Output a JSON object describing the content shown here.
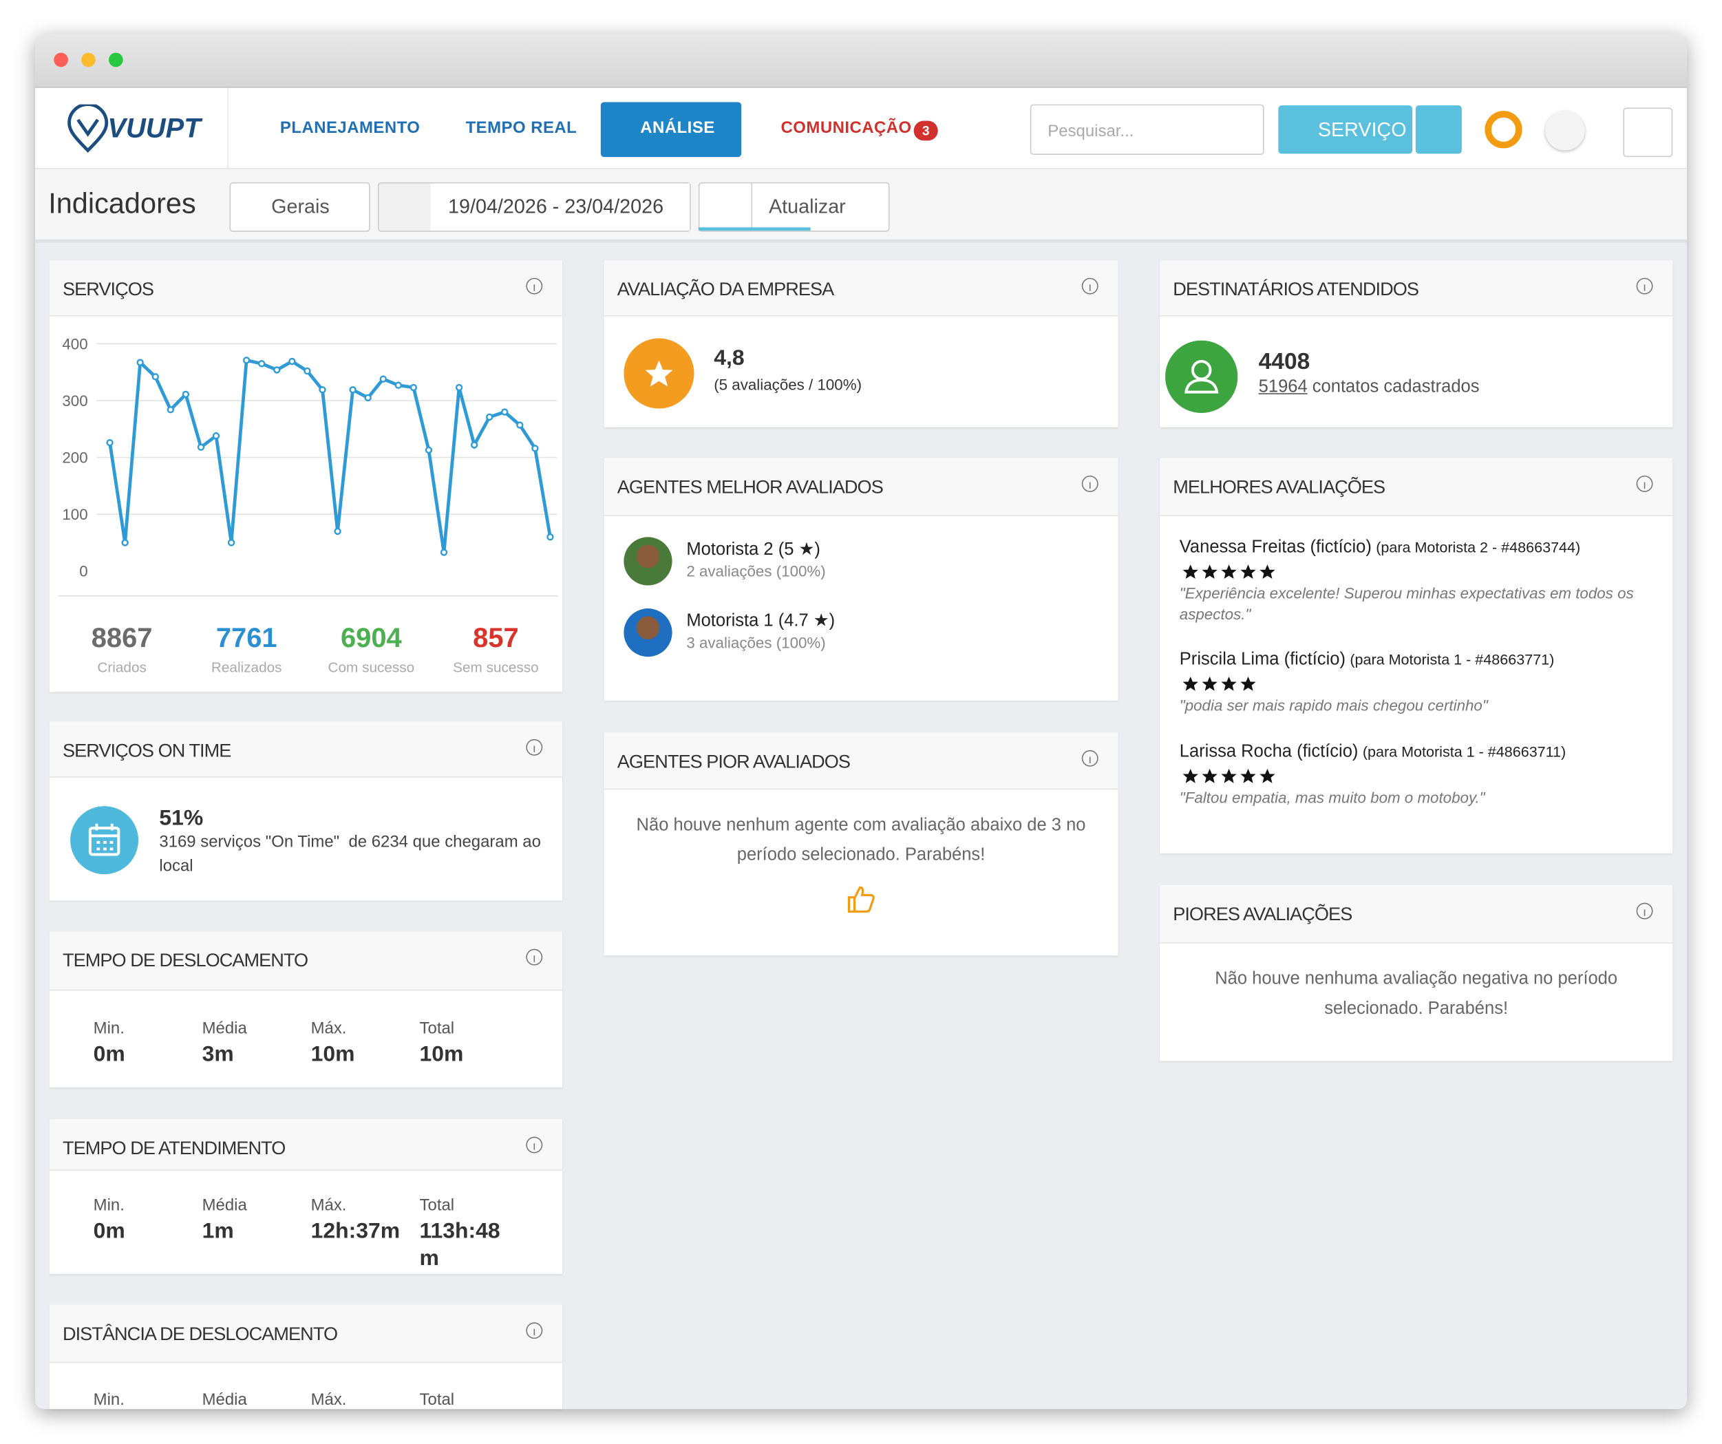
{
  "nav": {
    "logo": "VUUPT",
    "items": [
      "PLANEJAMENTO",
      "TEMPO REAL",
      "ANÁLISE",
      "COMUNICAÇÃO"
    ],
    "badge": "3",
    "search_placeholder": "Pesquisar...",
    "service_button": "SERVIÇO"
  },
  "toolbar": {
    "title": "Indicadores",
    "group": "Gerais",
    "date_range": "19/04/2026 - 23/04/2026",
    "refresh": "Atualizar"
  },
  "servicos": {
    "title": "SERVIÇOS",
    "chart": {
      "type": "line",
      "color": "#2f9bd6",
      "values": [
        226,
        50,
        367,
        342,
        284,
        311,
        218,
        238,
        50,
        371,
        365,
        354,
        369,
        352,
        319,
        70,
        319,
        305,
        338,
        327,
        323,
        213,
        33,
        323,
        222,
        271,
        280,
        257,
        216,
        60
      ],
      "ylim": [
        0,
        400
      ],
      "yticks": [
        0,
        100,
        200,
        300,
        400
      ],
      "grid": true
    },
    "stats": [
      {
        "value": "8867",
        "label": "Criados",
        "color": "#6b6b6b"
      },
      {
        "value": "7761",
        "label": "Realizados",
        "color": "#2a8fd0"
      },
      {
        "value": "6904",
        "label": "Com sucesso",
        "color": "#4caf50"
      },
      {
        "value": "857",
        "label": "Sem sucesso",
        "color": "#d9342b"
      }
    ]
  },
  "on_time": {
    "title": "SERVIÇOS ON TIME",
    "percent": "51%",
    "text": "3169 serviços \"On Time\"  de 6234 que chegaram ao local"
  },
  "tempo_deslocamento": {
    "title": "TEMPO DE DESLOCAMENTO",
    "metrics": [
      {
        "label": "Min.",
        "value": "0m"
      },
      {
        "label": "Média",
        "value": "3m"
      },
      {
        "label": "Máx.",
        "value": "10m"
      },
      {
        "label": "Total",
        "value": "10m"
      }
    ]
  },
  "tempo_atendimento": {
    "title": "TEMPO DE ATENDIMENTO",
    "metrics": [
      {
        "label": "Min.",
        "value": "0m"
      },
      {
        "label": "Média",
        "value": "1m"
      },
      {
        "label": "Máx.",
        "value": "12h:37m"
      },
      {
        "label": "Total",
        "value": "113h:48m"
      }
    ]
  },
  "distancia": {
    "title": "DISTÂNCIA DE DESLOCAMENTO",
    "metrics": [
      {
        "label": "Min."
      },
      {
        "label": "Média"
      },
      {
        "label": "Máx."
      },
      {
        "label": "Total"
      }
    ]
  },
  "avaliacao": {
    "title": "AVALIAÇÃO DA EMPRESA",
    "score": "4,8",
    "detail": "(5 avaliações / 100%)"
  },
  "melhores_agentes": {
    "title": "AGENTES MELHOR AVALIADOS",
    "agents": [
      {
        "name": "Motorista 2 (5 ★)",
        "detail": "2 avaliações (100%)"
      },
      {
        "name": "Motorista 1 (4.7 ★)",
        "detail": "3 avaliações (100%)"
      }
    ]
  },
  "piores_agentes": {
    "title": "AGENTES PIOR AVALIADOS",
    "message": "Não houve nenhum agente com avaliação abaixo de 3 no período selecionado. Parabéns!"
  },
  "destinatarios": {
    "title": "DESTINATÁRIOS ATENDIDOS",
    "count": "4408",
    "contacts": "51964",
    "contacts_text": "contatos cadastrados"
  },
  "melhores_avaliacoes": {
    "title": "MELHORES AVALIAÇÕES",
    "reviews": [
      {
        "name": "Vanessa Freitas (fictício)",
        "target": "(para Motorista 2 - #48663744)",
        "stars": 5,
        "comment": "\"Experiência excelente! Superou minhas expectativas em todos os aspectos.\""
      },
      {
        "name": "Priscila Lima (fictício)",
        "target": "(para Motorista 1 - #48663771)",
        "stars": 4,
        "comment": "\"podia ser mais rapido mais chegou certinho\""
      },
      {
        "name": "Larissa Rocha (fictício)",
        "target": "(para Motorista 1 - #48663711)",
        "stars": 5,
        "comment": "\"Faltou empatia, mas muito bom o motoboy.\""
      }
    ]
  },
  "piores_avaliacoes": {
    "title": "PIORES AVALIAÇÕES",
    "message": "Não houve nenhuma avaliação negativa no período selecionado. Parabéns!"
  }
}
